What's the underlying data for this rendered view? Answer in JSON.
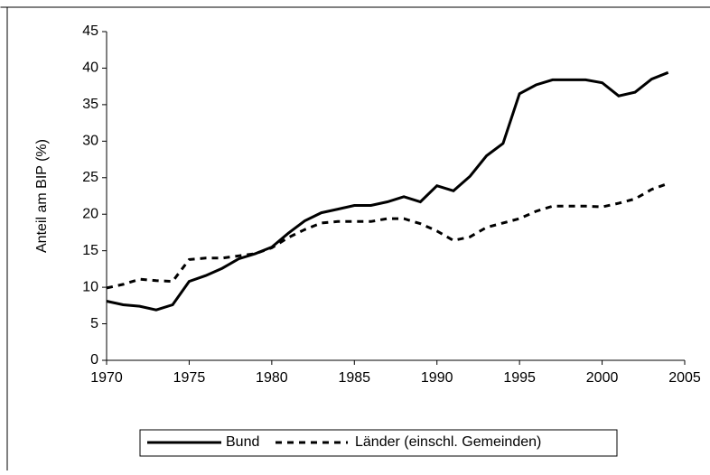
{
  "chart_data": {
    "type": "line",
    "y_label": "Anteil am BIP (%)",
    "x": [
      1970,
      1971,
      1972,
      1973,
      1974,
      1975,
      1976,
      1977,
      1978,
      1979,
      1980,
      1981,
      1982,
      1983,
      1984,
      1985,
      1986,
      1987,
      1988,
      1989,
      1990,
      1991,
      1992,
      1993,
      1994,
      1995,
      1996,
      1997,
      1998,
      1999,
      2000,
      2001,
      2002,
      2003,
      2004
    ],
    "series": [
      {
        "name": "Bund",
        "color": "#000000",
        "dashed": false,
        "values": [
          8.1,
          7.6,
          7.4,
          6.9,
          7.6,
          10.8,
          11.6,
          12.6,
          13.9,
          14.6,
          15.5,
          17.4,
          19.1,
          20.2,
          20.7,
          21.2,
          21.2,
          21.7,
          22.4,
          21.7,
          23.9,
          23.2,
          25.2,
          28.0,
          29.7,
          36.5,
          37.7,
          38.4,
          38.4,
          38.4,
          38.0,
          36.2,
          36.7,
          38.5,
          39.4
        ]
      },
      {
        "name": "Länder (einschl. Gemeinden)",
        "color": "#000000",
        "dashed": true,
        "values": [
          9.9,
          10.4,
          11.1,
          10.9,
          10.8,
          13.8,
          14.0,
          14.0,
          14.3,
          14.6,
          15.4,
          16.8,
          17.9,
          18.8,
          19.0,
          19.0,
          19.0,
          19.4,
          19.4,
          18.7,
          17.7,
          16.4,
          16.9,
          18.2,
          18.8,
          19.4,
          20.4,
          21.1,
          21.1,
          21.1,
          21.0,
          21.5,
          22.1,
          23.4,
          24.2
        ]
      }
    ],
    "xlim": [
      1970,
      2005
    ],
    "xticks": [
      1970,
      1975,
      1980,
      1985,
      1990,
      1995,
      2000,
      2005
    ],
    "ylim": [
      0,
      45
    ],
    "yticks": [
      0,
      5,
      10,
      15,
      20,
      25,
      30,
      35,
      40,
      45
    ],
    "grid": false,
    "legend": "bottom"
  }
}
